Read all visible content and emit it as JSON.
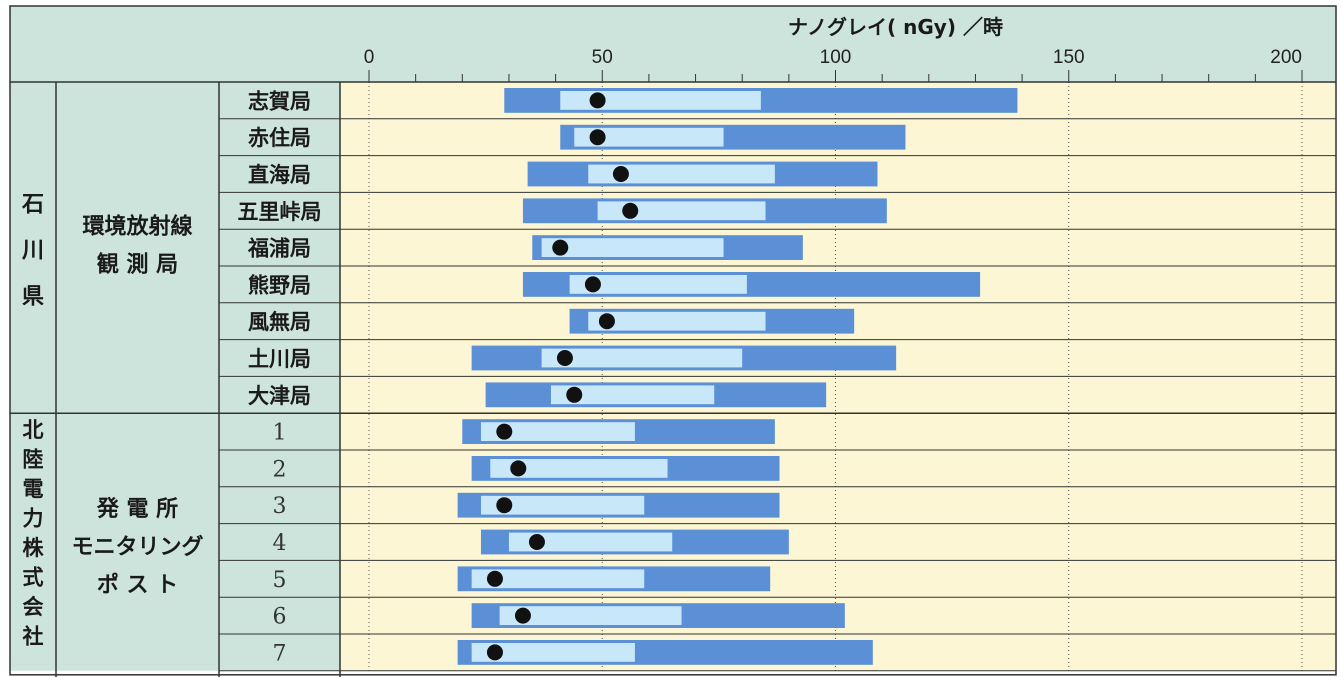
{
  "chart_data": {
    "type": "bar",
    "axis_title": "ナノグレイ( nGy) ／時",
    "xlim": [
      0,
      200
    ],
    "x_ticks": [
      "0",
      "50",
      "100",
      "150",
      "200"
    ],
    "grid": true,
    "groups": [
      {
        "name": "石川県",
        "subgroup": "環境放射線観測局",
        "stations": [
          {
            "name": "志賀局",
            "full_range": [
              29,
              139
            ],
            "typical_range": [
              41,
              84
            ],
            "mean": 49
          },
          {
            "name": "赤住局",
            "full_range": [
              41,
              115
            ],
            "typical_range": [
              44,
              76
            ],
            "mean": 49
          },
          {
            "name": "直海局",
            "full_range": [
              34,
              109
            ],
            "typical_range": [
              47,
              87
            ],
            "mean": 54
          },
          {
            "name": "五里峠局",
            "full_range": [
              33,
              111
            ],
            "typical_range": [
              49,
              85
            ],
            "mean": 56
          },
          {
            "name": "福浦局",
            "full_range": [
              35,
              93
            ],
            "typical_range": [
              37,
              76
            ],
            "mean": 41
          },
          {
            "name": "熊野局",
            "full_range": [
              33,
              131
            ],
            "typical_range": [
              43,
              81
            ],
            "mean": 48
          },
          {
            "name": "風無局",
            "full_range": [
              43,
              104
            ],
            "typical_range": [
              47,
              85
            ],
            "mean": 51
          },
          {
            "name": "土川局",
            "full_range": [
              22,
              113
            ],
            "typical_range": [
              37,
              80
            ],
            "mean": 42
          },
          {
            "name": "大津局",
            "full_range": [
              25,
              98
            ],
            "typical_range": [
              39,
              74
            ],
            "mean": 44
          }
        ]
      },
      {
        "name": "北陸電力株式会社",
        "subgroup": "発電所モニタリングポスト",
        "stations": [
          {
            "name": "1",
            "full_range": [
              20,
              87
            ],
            "typical_range": [
              24,
              57
            ],
            "mean": 29
          },
          {
            "name": "2",
            "full_range": [
              22,
              88
            ],
            "typical_range": [
              26,
              64
            ],
            "mean": 32
          },
          {
            "name": "3",
            "full_range": [
              19,
              88
            ],
            "typical_range": [
              24,
              59
            ],
            "mean": 29
          },
          {
            "name": "4",
            "full_range": [
              24,
              90
            ],
            "typical_range": [
              30,
              65
            ],
            "mean": 36
          },
          {
            "name": "5",
            "full_range": [
              19,
              86
            ],
            "typical_range": [
              22,
              59
            ],
            "mean": 27
          },
          {
            "name": "6",
            "full_range": [
              22,
              102
            ],
            "typical_range": [
              28,
              67
            ],
            "mean": 33
          },
          {
            "name": "7",
            "full_range": [
              19,
              108
            ],
            "typical_range": [
              22,
              57
            ],
            "mean": 27
          }
        ]
      }
    ],
    "colors": {
      "header_bg": "#cde4dc",
      "row_label_bg": "#cde4dc",
      "plot_bg": "#fdf6d4",
      "full_range": "#5b8fd6",
      "typical_range": "#c8e8f9",
      "mean_marker": "#111111",
      "border": "#333333",
      "gridline": "#555555"
    }
  },
  "header": {
    "group1_lines": [
      "石",
      "川",
      "県"
    ],
    "sub1_lines": [
      "環境放射線",
      "観 測 局"
    ],
    "group2_lines": [
      "北",
      "陸",
      "電",
      "力",
      "株",
      "式",
      "会",
      "社"
    ],
    "sub2_lines": [
      "発 電 所",
      "モニタリング",
      "ポ ス ト"
    ]
  }
}
